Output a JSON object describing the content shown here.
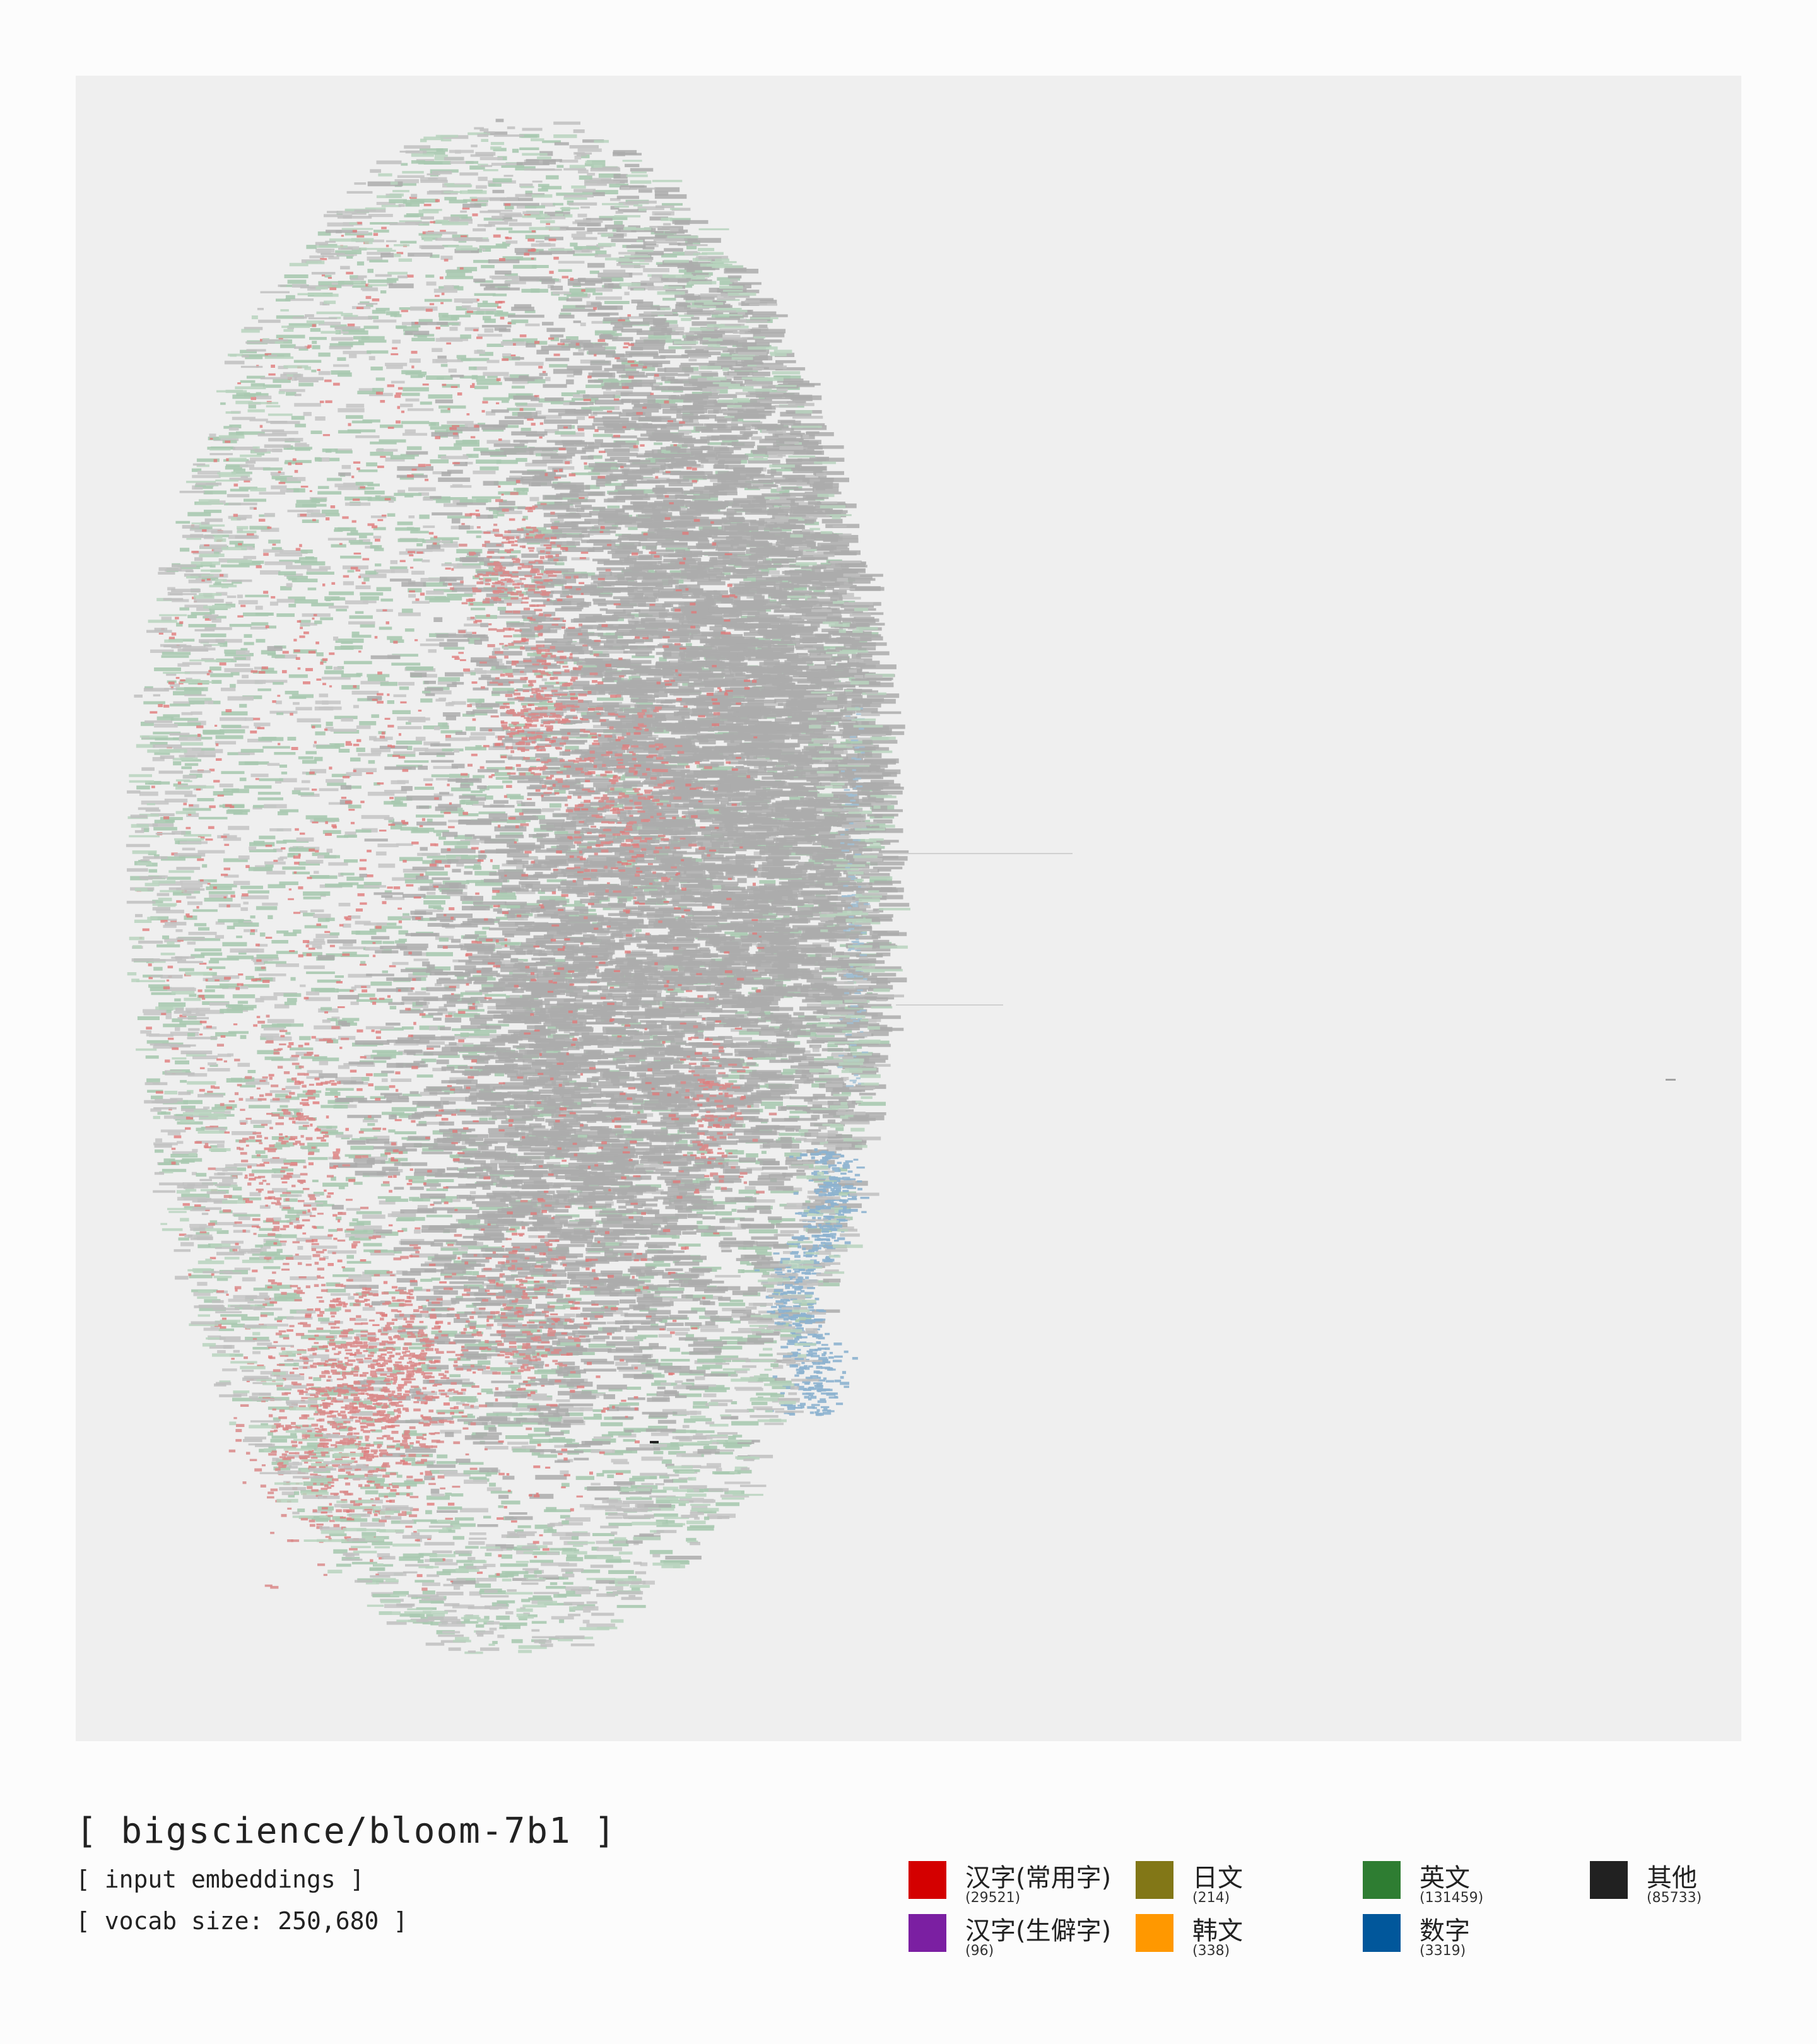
{
  "header": {
    "model_name": "[ bigscience/bloom-7b1 ]",
    "subtitle_1": "[ input embeddings ]",
    "subtitle_2": "[ vocab size: 250,680 ]"
  },
  "legend": {
    "items": [
      {
        "label": "汉字(常用字)",
        "count": "(29521)",
        "color": "#d40000"
      },
      {
        "label": "汉字(生僻字)",
        "count": "(96)",
        "color": "#7b1fa2"
      },
      {
        "label": "日文",
        "count": "(214)",
        "color": "#827717"
      },
      {
        "label": "韩文",
        "count": "(338)",
        "color": "#ff9800"
      },
      {
        "label": "英文",
        "count": "(131459)",
        "color": "#2e7d32"
      },
      {
        "label": "数字",
        "count": "(3319)",
        "color": "#01579b"
      },
      {
        "label": "其他",
        "count": "(85733)",
        "color": "#212121"
      }
    ]
  },
  "chart_data": {
    "type": "scatter",
    "description_kind": "token embedding projection",
    "grid": false,
    "legend_placement": "bottom-right",
    "series": [
      {
        "name": "汉字(常用字)",
        "count": 29521,
        "color": "#d40000",
        "region": "left and lower-left of the ellipse"
      },
      {
        "name": "汉字(生僻字)",
        "count": 96,
        "color": "#7b1fa2",
        "region": "scattered"
      },
      {
        "name": "日文",
        "count": 214,
        "color": "#827717",
        "region": "scattered"
      },
      {
        "name": "韩文",
        "count": 338,
        "color": "#ff9800",
        "region": "scattered"
      },
      {
        "name": "英文",
        "count": 131459,
        "color": "#2e7d32",
        "region": "throughout the ellipse"
      },
      {
        "name": "数字",
        "count": 3319,
        "color": "#01579b",
        "region": "right edge, lower half"
      },
      {
        "name": "其他",
        "count": 85733,
        "color": "#212121",
        "region": "dense core in center and right"
      }
    ]
  }
}
